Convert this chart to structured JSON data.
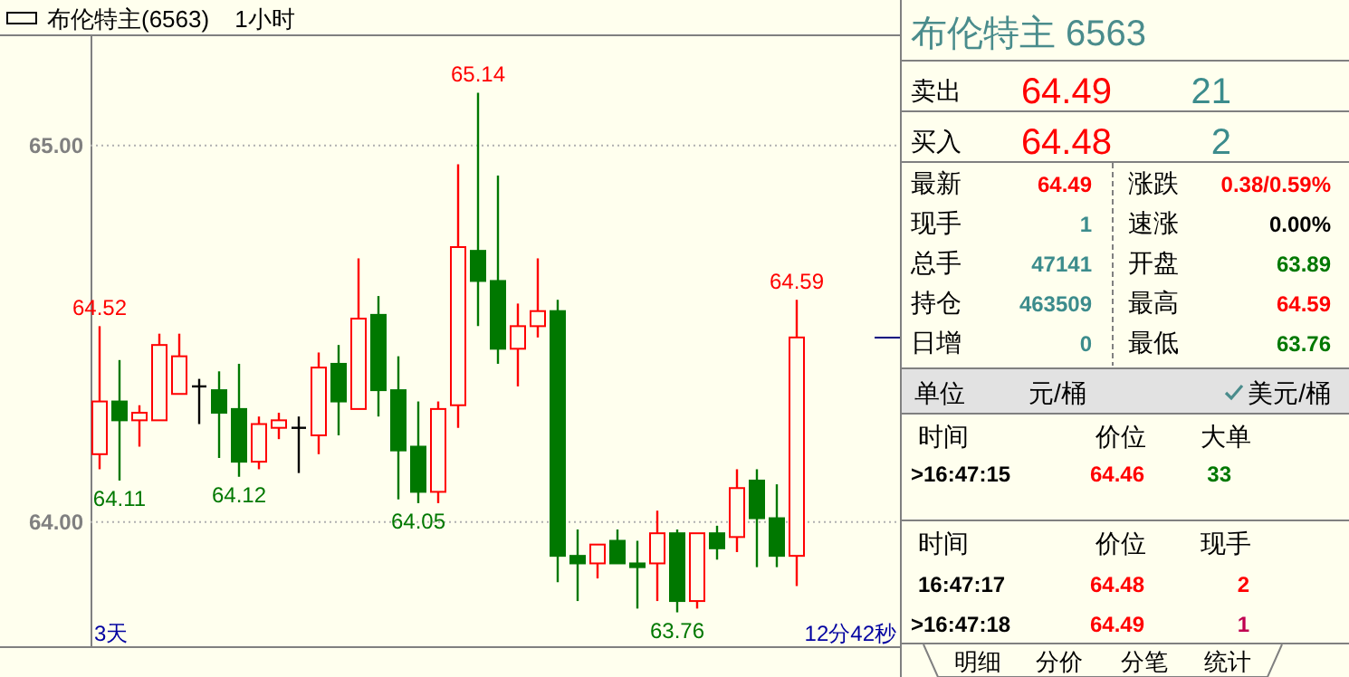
{
  "chart_data": [
    {
      "type": "candlestick",
      "title": "布伦特主(6563)",
      "subtitle": "1小时",
      "categories": [
        null,
        null,
        null,
        null,
        null,
        null,
        null,
        null,
        null,
        null,
        null,
        null,
        null,
        null,
        null,
        null,
        null,
        null,
        null,
        null,
        null,
        null,
        null,
        null,
        null,
        null,
        null,
        null,
        null,
        null,
        null,
        null,
        null,
        null,
        null,
        null
      ],
      "ohlc": [
        [
          64.18,
          64.52,
          64.14,
          64.32
        ],
        [
          64.32,
          64.43,
          64.11,
          64.27
        ],
        [
          64.27,
          64.31,
          64.2,
          64.29
        ],
        [
          64.27,
          64.5,
          64.27,
          64.47
        ],
        [
          64.34,
          64.5,
          64.34,
          64.44
        ],
        [
          64.36,
          64.38,
          64.26,
          64.36
        ],
        [
          64.35,
          64.4,
          64.17,
          64.29
        ],
        [
          64.3,
          64.42,
          64.12,
          64.16
        ],
        [
          64.16,
          64.28,
          64.14,
          64.26
        ],
        [
          64.25,
          64.29,
          64.22,
          64.27
        ],
        [
          64.25,
          64.28,
          64.13,
          64.25
        ],
        [
          64.23,
          64.45,
          64.18,
          64.41
        ],
        [
          64.42,
          64.47,
          64.23,
          64.32
        ],
        [
          64.3,
          64.7,
          64.3,
          64.54
        ],
        [
          64.55,
          64.6,
          64.28,
          64.35
        ],
        [
          64.35,
          64.44,
          64.06,
          64.19
        ],
        [
          64.2,
          64.32,
          64.05,
          64.08
        ],
        [
          64.08,
          64.32,
          64.05,
          64.3
        ],
        [
          64.31,
          64.95,
          64.25,
          64.73
        ],
        [
          64.72,
          65.14,
          64.52,
          64.64
        ],
        [
          64.64,
          64.92,
          64.42,
          64.46
        ],
        [
          64.46,
          64.58,
          64.36,
          64.52
        ],
        [
          64.52,
          64.7,
          64.49,
          64.56
        ],
        [
          64.56,
          64.59,
          63.84,
          63.91
        ],
        [
          63.91,
          63.98,
          63.79,
          63.89
        ],
        [
          63.89,
          63.94,
          63.85,
          63.94
        ],
        [
          63.95,
          63.98,
          63.89,
          63.89
        ],
        [
          63.89,
          63.95,
          63.77,
          63.88
        ],
        [
          63.89,
          64.03,
          63.79,
          63.97
        ],
        [
          63.97,
          63.98,
          63.76,
          63.79
        ],
        [
          63.79,
          63.97,
          63.77,
          63.97
        ],
        [
          63.97,
          63.99,
          63.9,
          63.93
        ],
        [
          63.96,
          64.14,
          63.92,
          64.09
        ],
        [
          64.11,
          64.14,
          63.88,
          64.01
        ],
        [
          64.01,
          64.1,
          63.88,
          63.91
        ],
        [
          63.91,
          64.59,
          63.83,
          64.49
        ]
      ],
      "ylim": [
        63.67,
        65.29
      ],
      "yticks": [
        {
          "value": 64,
          "label": "64.00"
        },
        {
          "value": 65,
          "label": "65.00"
        }
      ],
      "tick_labels": "y",
      "grid": "y",
      "annotations": [
        {
          "text": "65.14",
          "y": 65.14
        },
        {
          "text": "64.59",
          "y": 64.59
        },
        {
          "text": "64.52",
          "y": 64.52
        },
        {
          "text": "64.11",
          "y": 64.11
        },
        {
          "text": "64.12",
          "y": 64.12
        },
        {
          "text": "64.05",
          "y": 64.05
        },
        {
          "text": "63.76",
          "y": 63.76
        },
        "3天",
        "12分42秒"
      ]
    },
    {
      "type": "other",
      "title": "布伦特主  6563",
      "annotations": [
        "卖出",
        "64.49",
        "21",
        "买入",
        "64.48",
        "2",
        "最新",
        "64.49",
        "涨跌",
        "0.38/0.59%",
        "现手",
        "1",
        "速涨",
        "0.00%",
        "总手",
        "47141",
        "开盘",
        "63.89",
        "持仓",
        "463509",
        "最高",
        "64.59",
        "日增",
        "0",
        "最低",
        "63.76",
        "单位",
        "元/桶",
        "美元/桶",
        "时间",
        "价位",
        "大单",
        ">16:47:15",
        "64.46",
        "33",
        "时间",
        "价位",
        "现手",
        "16:47:17",
        "64.48",
        "2",
        ">16:47:18",
        "64.49",
        "1",
        "明细",
        "分价",
        "分笔",
        "统计"
      ]
    }
  ]
}
